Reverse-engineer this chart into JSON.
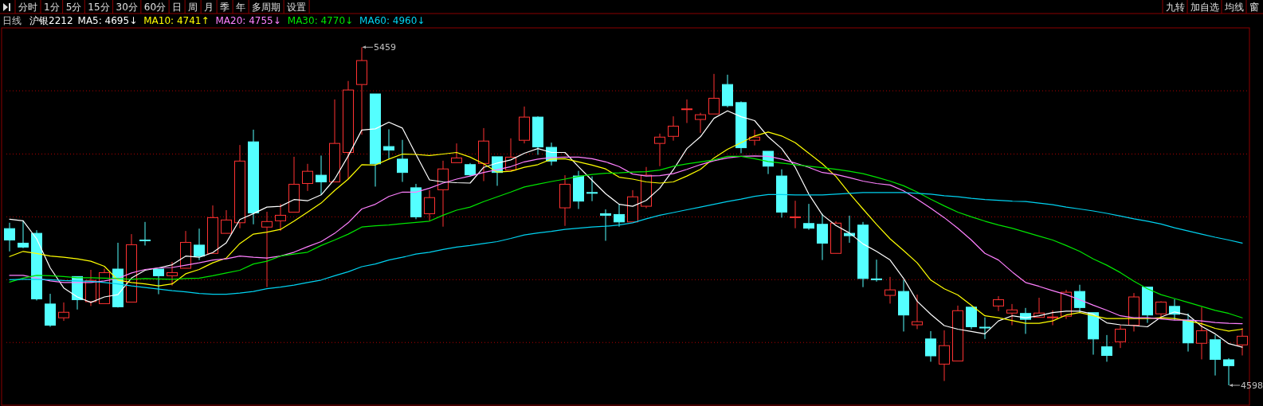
{
  "chart_data": {
    "type": "candlestick",
    "title": "日线",
    "subtitle": "沪银2212",
    "annotations": [
      "分时",
      "1分",
      "5分",
      "15分",
      "30分",
      "60分",
      "日",
      "周",
      "月",
      "季",
      "年",
      "多周期",
      "设置",
      "九转",
      "加自选",
      "均线",
      "窗",
      "5459",
      "4598"
    ],
    "categories": [
      null,
      null,
      null,
      null,
      null,
      null,
      null,
      null,
      null,
      null,
      null,
      null,
      null,
      null,
      null,
      null,
      null,
      null,
      null,
      null,
      null,
      null,
      null,
      null,
      null,
      null,
      null,
      null,
      null,
      null,
      null,
      null,
      null,
      null,
      null,
      null,
      null,
      null,
      null,
      null,
      null,
      null,
      null,
      null,
      null,
      null,
      null,
      null,
      null,
      null,
      null,
      null,
      null,
      null,
      null,
      null,
      null,
      null,
      null,
      null,
      null,
      null,
      null,
      null,
      null,
      null,
      null,
      null,
      null,
      null,
      null,
      null,
      null,
      null,
      null,
      null,
      null,
      null,
      null,
      null,
      null,
      null,
      null,
      null,
      null,
      null,
      null,
      null,
      null,
      null,
      null,
      null
    ],
    "grid": true,
    "legend": "top left",
    "yticks": [
      {
        "value": 4707,
        "label": null
      },
      {
        "value": 4867,
        "label": null
      },
      {
        "value": 5027,
        "label": null
      },
      {
        "value": 5187,
        "label": null
      },
      {
        "value": 5348,
        "label": null
      }
    ],
    "ohlc": [
      [
        4997,
        5012,
        4939,
        4968
      ],
      [
        4960,
        5018,
        4947,
        4950
      ],
      [
        4985,
        4993,
        4814,
        4818
      ],
      [
        4805,
        4831,
        4747,
        4751
      ],
      [
        4770,
        4809,
        4762,
        4784
      ],
      [
        4875,
        4875,
        4791,
        4816
      ],
      [
        4811,
        4892,
        4800,
        4865
      ],
      [
        4806,
        4895,
        4806,
        4885
      ],
      [
        4894,
        4961,
        4796,
        4798
      ],
      [
        4810,
        4983,
        4810,
        4956
      ],
      [
        4968,
        5014,
        4954,
        4966
      ],
      [
        4894,
        4894,
        4830,
        4877
      ],
      [
        4877,
        4912,
        4852,
        4885
      ],
      [
        4896,
        4991,
        4896,
        4962
      ],
      [
        4955,
        4997,
        4917,
        4927
      ],
      [
        4934,
        5056,
        4934,
        5025
      ],
      [
        4985,
        5044,
        4985,
        5019
      ],
      [
        5012,
        5210,
        4998,
        5169
      ],
      [
        5218,
        5249,
        5008,
        5037
      ],
      [
        5001,
        5040,
        4848,
        5015
      ],
      [
        5017,
        5060,
        4991,
        5031
      ],
      [
        5039,
        5180,
        5039,
        5110
      ],
      [
        5112,
        5162,
        5093,
        5143
      ],
      [
        5133,
        5183,
        5083,
        5116
      ],
      [
        5116,
        5326,
        5116,
        5214
      ],
      [
        5191,
        5373,
        5123,
        5350
      ],
      [
        5364,
        5459,
        5236,
        5425
      ],
      [
        5340,
        5340,
        5104,
        5162
      ],
      [
        5206,
        5250,
        5175,
        5197
      ],
      [
        5174,
        5223,
        5116,
        5140
      ],
      [
        5101,
        5111,
        5021,
        5027
      ],
      [
        5035,
        5095,
        5017,
        5076
      ],
      [
        5096,
        5170,
        5002,
        5149
      ],
      [
        5165,
        5214,
        5165,
        5177
      ],
      [
        5160,
        5164,
        5130,
        5134
      ],
      [
        5163,
        5253,
        5118,
        5220
      ],
      [
        5180,
        5180,
        5106,
        5140
      ],
      [
        5146,
        5227,
        5146,
        5179
      ],
      [
        5222,
        5308,
        5214,
        5281
      ],
      [
        5281,
        5283,
        5185,
        5205
      ],
      [
        5204,
        5216,
        5158,
        5169
      ],
      [
        5050,
        5133,
        5004,
        5110
      ],
      [
        5131,
        5144,
        5047,
        5067
      ],
      [
        5089,
        5130,
        5067,
        5088
      ],
      [
        5035,
        5046,
        4966,
        5031
      ],
      [
        5033,
        5060,
        5002,
        5014
      ],
      [
        5014,
        5095,
        5014,
        5078
      ],
      [
        5054,
        5154,
        5049,
        5133
      ],
      [
        5214,
        5239,
        5156,
        5230
      ],
      [
        5232,
        5283,
        5221,
        5258
      ],
      [
        5300,
        5326,
        5266,
        5302
      ],
      [
        5275,
        5292,
        5241,
        5287
      ],
      [
        5289,
        5391,
        5289,
        5329
      ],
      [
        5364,
        5389,
        5306,
        5310
      ],
      [
        5318,
        5321,
        5189,
        5203
      ],
      [
        5222,
        5249,
        5209,
        5230
      ],
      [
        5194,
        5194,
        5136,
        5156
      ],
      [
        5131,
        5148,
        5025,
        5039
      ],
      [
        5025,
        5068,
        4998,
        5027
      ],
      [
        5010,
        5060,
        4994,
        4998
      ],
      [
        5008,
        5035,
        4917,
        4960
      ],
      [
        4934,
        5016,
        4934,
        5011
      ],
      [
        4985,
        5030,
        4961,
        4979
      ],
      [
        5006,
        5014,
        4848,
        4870
      ],
      [
        4869,
        4918,
        4862,
        4867
      ],
      [
        4827,
        4874,
        4806,
        4841
      ],
      [
        4837,
        4867,
        4735,
        4777
      ],
      [
        4752,
        4829,
        4741,
        4760
      ],
      [
        4716,
        4736,
        4658,
        4673
      ],
      [
        4652,
        4738,
        4609,
        4699
      ],
      [
        4660,
        4801,
        4660,
        4788
      ],
      [
        4797,
        4797,
        4741,
        4747
      ],
      [
        4746,
        4771,
        4716,
        4745
      ],
      [
        4800,
        4825,
        4787,
        4816
      ],
      [
        4782,
        4805,
        4751,
        4790
      ],
      [
        4781,
        4795,
        4729,
        4766
      ],
      [
        4771,
        4821,
        4771,
        4782
      ],
      [
        4770,
        4789,
        4751,
        4772
      ],
      [
        4774,
        4841,
        4767,
        4835
      ],
      [
        4837,
        4854,
        4783,
        4796
      ],
      [
        4783,
        4783,
        4676,
        4716
      ],
      [
        4696,
        4726,
        4658,
        4674
      ],
      [
        4709,
        4751,
        4693,
        4741
      ],
      [
        4751,
        4833,
        4735,
        4823
      ],
      [
        4848,
        4849,
        4757,
        4777
      ],
      [
        4780,
        4812,
        4772,
        4810
      ],
      [
        4799,
        4817,
        4764,
        4779
      ],
      [
        4764,
        4781,
        4684,
        4706
      ],
      [
        4705,
        4797,
        4664,
        4737
      ],
      [
        4714,
        4726,
        4623,
        4664
      ],
      [
        4663,
        4667,
        4598,
        4648
      ],
      [
        4701,
        4744,
        4674,
        4723
      ]
    ],
    "colors": [
      "#54ffff",
      "#54ffff",
      "#54ffff",
      "#54ffff",
      "#ff3232",
      "#54ffff",
      "#ff3232",
      "#ff3232",
      "#54ffff",
      "#ff3232",
      "#54ffff",
      "#54ffff",
      "#ff3232",
      "#ff3232",
      "#54ffff",
      "#ff3232",
      "#ff3232",
      "#ff3232",
      "#54ffff",
      "#ff3232",
      "#ff3232",
      "#ff3232",
      "#ff3232",
      "#54ffff",
      "#ff3232",
      "#ff3232",
      "#ff3232",
      "#54ffff",
      "#54ffff",
      "#54ffff",
      "#54ffff",
      "#ff3232",
      "#ff3232",
      "#ff3232",
      "#54ffff",
      "#ff3232",
      "#54ffff",
      "#ff3232",
      "#ff3232",
      "#54ffff",
      "#54ffff",
      "#ff3232",
      "#54ffff",
      "#54ffff",
      "#54ffff",
      "#54ffff",
      "#ff3232",
      "#ff3232",
      "#ff3232",
      "#ff3232",
      "#ff3232",
      "#ff3232",
      "#ff3232",
      "#54ffff",
      "#54ffff",
      "#ff3232",
      "#54ffff",
      "#54ffff",
      "#ff3232",
      "#54ffff",
      "#54ffff",
      "#ff3232",
      "#54ffff",
      "#54ffff",
      "#54ffff",
      "#ff3232",
      "#54ffff",
      "#ff3232",
      "#54ffff",
      "#ff3232",
      "#ff3232",
      "#54ffff",
      "#54ffff",
      "#ff3232",
      "#ff3232",
      "#54ffff",
      "#ff3232",
      "#ff3232",
      "#ff3232",
      "#54ffff",
      "#54ffff",
      "#54ffff",
      "#ff3232",
      "#ff3232",
      "#54ffff",
      "#ff3232",
      "#54ffff",
      "#54ffff",
      "#ff3232",
      "#54ffff",
      "#54ffff",
      "#ff3232"
    ],
    "series": [
      {
        "type": "line",
        "name": "MA5: 4695↓",
        "color": "#ffffff",
        "values": [
          5021,
          5017,
          4971,
          4897,
          4846,
          4823,
          4809,
          4823,
          4829,
          4871,
          4891,
          4897,
          4905,
          4927,
          4924,
          4936,
          4961,
          5020,
          5035,
          5052,
          5054,
          5071,
          5068,
          5083,
          5123,
          5182,
          5248,
          5251,
          5268,
          5253,
          5186,
          5121,
          5116,
          5114,
          5113,
          5153,
          5164,
          5172,
          5189,
          5201,
          5191,
          5191,
          5155,
          5120,
          5086,
          5059,
          5054,
          5069,
          5100,
          5147,
          5201,
          5231,
          5278,
          5297,
          5282,
          5272,
          5231,
          5201,
          5153,
          5085,
          5032,
          5005,
          4986,
          4958,
          4939,
          4917,
          4870,
          4812,
          4779,
          4750,
          4741,
          4735,
          4729,
          4762,
          4775,
          4770,
          4775,
          4783,
          4787,
          4787,
          4779,
          4757,
          4752,
          4750,
          4747,
          4772,
          4785,
          4777,
          4748,
          4729,
          4704,
          4695
        ]
      },
      {
        "type": "line",
        "name": "MA10: 4741↑",
        "color": "#ffff00",
        "values": [
          4926,
          4939,
          4934,
          4927,
          4924,
          4920,
          4914,
          4901,
          4866,
          4860,
          4856,
          4851,
          4856,
          4882,
          4893,
          4910,
          4922,
          4959,
          4983,
          4988,
          4995,
          5016,
          5039,
          5062,
          5094,
          5123,
          5160,
          5159,
          5174,
          5187,
          5186,
          5183,
          5187,
          5191,
          5179,
          5162,
          5141,
          5143,
          5153,
          5160,
          5174,
          5175,
          5167,
          5159,
          5149,
          5128,
          5123,
          5116,
          5113,
          5116,
          5131,
          5148,
          5177,
          5199,
          5216,
          5233,
          5243,
          5233,
          5216,
          5189,
          5162,
          5130,
          5087,
          5047,
          5008,
          4971,
          4941,
          4910,
          4866,
          4844,
          4828,
          4802,
          4775,
          4770,
          4763,
          4756,
          4756,
          4762,
          4777,
          4783,
          4775,
          4768,
          4768,
          4768,
          4768,
          4770,
          4768,
          4762,
          4755,
          4743,
          4736,
          4741
        ]
      },
      {
        "type": "line",
        "name": "MA20: 4755↓",
        "color": "#ff80ff",
        "values": [
          4878,
          4878,
          4871,
          4864,
          4860,
          4860,
          4860,
          4864,
          4870,
          4884,
          4893,
          4897,
          4898,
          4904,
          4910,
          4917,
          4920,
          4927,
          4924,
          4922,
          4927,
          4937,
          4951,
          4964,
          4985,
          5012,
          5047,
          5059,
          5079,
          5090,
          5090,
          5100,
          5113,
          5123,
          5131,
          5140,
          5147,
          5155,
          5167,
          5174,
          5178,
          5179,
          5179,
          5175,
          5167,
          5155,
          5136,
          5131,
          5132,
          5137,
          5148,
          5160,
          5170,
          5177,
          5181,
          5182,
          5181,
          5174,
          5164,
          5153,
          5140,
          5135,
          5127,
          5118,
          5112,
          5108,
          5093,
          5072,
          5049,
          5025,
          4998,
          4968,
          4934,
          4917,
          4887,
          4860,
          4850,
          4839,
          4829,
          4816,
          4802,
          4789,
          4775,
          4770,
          4770,
          4767,
          4764,
          4764,
          4762,
          4758,
          4756,
          4755
        ]
      },
      {
        "type": "line",
        "name": "MA30: 4770↓",
        "color": "#00e600",
        "values": [
          4861,
          4871,
          4878,
          4877,
          4875,
          4872,
          4872,
          4871,
          4870,
          4868,
          4870,
          4869,
          4868,
          4870,
          4871,
          4877,
          4884,
          4891,
          4907,
          4914,
          4927,
          4932,
          4937,
          4954,
          4968,
          4983,
          5001,
          5004,
          5006,
          5010,
          5013,
          5016,
          5031,
          5044,
          5052,
          5066,
          5078,
          5090,
          5103,
          5110,
          5117,
          5123,
          5130,
          5135,
          5138,
          5139,
          5141,
          5142,
          5146,
          5156,
          5162,
          5167,
          5172,
          5181,
          5181,
          5175,
          5168,
          5164,
          5160,
          5156,
          5152,
          5148,
          5143,
          5137,
          5128,
          5118,
          5106,
          5090,
          5072,
          5055,
          5039,
          5027,
          5016,
          5006,
          4998,
          4988,
          4978,
          4968,
          4954,
          4939,
          4920,
          4904,
          4885,
          4863,
          4844,
          4829,
          4819,
          4809,
          4799,
          4789,
          4781,
          4770
        ]
      },
      {
        "type": "line",
        "name": "MA60: 4960↓",
        "color": "#00d2f0",
        "values": [
          4867,
          4868,
          4868,
          4867,
          4865,
          4864,
          4863,
          4860,
          4856,
          4851,
          4847,
          4843,
          4839,
          4836,
          4832,
          4830,
          4830,
          4833,
          4837,
          4844,
          4848,
          4853,
          4860,
          4866,
          4877,
          4887,
          4900,
          4907,
          4917,
          4924,
          4932,
          4937,
          4944,
          4950,
          4954,
          4959,
          4964,
          4972,
          4981,
          4986,
          4990,
          4995,
          4998,
          5001,
          5003,
          5006,
          5012,
          5022,
          5031,
          5038,
          5045,
          5052,
          5059,
          5066,
          5072,
          5079,
          5084,
          5084,
          5083,
          5083,
          5083,
          5085,
          5087,
          5089,
          5089,
          5089,
          5089,
          5087,
          5085,
          5081,
          5078,
          5074,
          5071,
          5069,
          5067,
          5066,
          5062,
          5058,
          5052,
          5047,
          5042,
          5036,
          5029,
          5022,
          5016,
          5009,
          4999,
          4991,
          4983,
          4975,
          4968,
          4960
        ]
      }
    ]
  }
}
